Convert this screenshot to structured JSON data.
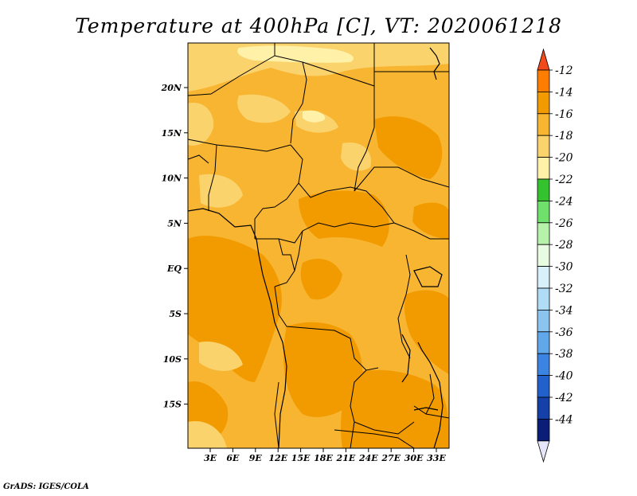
{
  "title": "Temperature at 400hPa [C], VT: 2020061218",
  "credit": "GrADS: IGES/COLA",
  "map": {
    "lat_labels": [
      "20N",
      "15N",
      "10N",
      "5N",
      "EQ",
      "5S",
      "10S",
      "15S"
    ],
    "lon_labels": [
      "3E",
      "6E",
      "9E",
      "12E",
      "15E",
      "18E",
      "21E",
      "24E",
      "27E",
      "30E",
      "33E"
    ]
  },
  "colorbar": {
    "labels": [
      "-12",
      "-14",
      "-16",
      "-18",
      "-20",
      "-22",
      "-24",
      "-26",
      "-28",
      "-30",
      "-32",
      "-34",
      "-36",
      "-38",
      "-40",
      "-42",
      "-44"
    ],
    "colors": [
      "#ff7d00",
      "#f29b00",
      "#f8b531",
      "#fbd36d",
      "#fff2a8",
      "#34c22e",
      "#6ee06b",
      "#b6f2aa",
      "#e8fce2",
      "#d8f0fa",
      "#b0dcf5",
      "#8cc4f0",
      "#60a8ea",
      "#3c84e2",
      "#2261cc",
      "#1440a8",
      "#0a1e78"
    ],
    "top_arrow_color": "#f24a1a",
    "bottom_arrow_color": "#e6e6fa"
  },
  "field_colors": {
    "minus_14": "#f29b00",
    "minus_16": "#f8b531",
    "minus_18": "#fbd36d",
    "minus_20": "#fff2a8"
  }
}
